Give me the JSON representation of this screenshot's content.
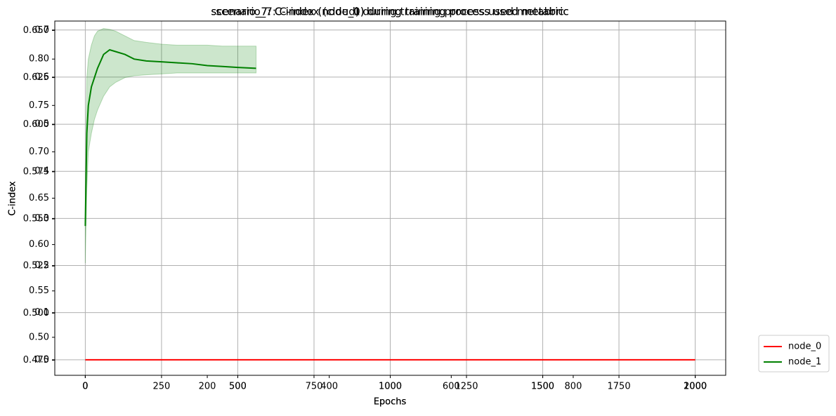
{
  "chart_data": [
    {
      "type": "line",
      "title": "scenario_7: C-index (node_0) during training process used metabric",
      "xlabel": "Epochs",
      "ylabel": "C-index",
      "xlim": [
        -100,
        2100
      ],
      "xticks": [
        0,
        250,
        500,
        750,
        1000,
        1250,
        1500,
        1750,
        2000
      ],
      "ylim": [
        -0.033,
        0.719
      ],
      "yticks": [
        {
          "value": 0,
          "label": "0.0"
        },
        0.1,
        0.2,
        0.3,
        0.4,
        0.5,
        0.6,
        0.7
      ],
      "grid": true,
      "series": [
        {
          "name": "node_0",
          "color": "#ff0000",
          "x": [
            0,
            2000
          ],
          "values": [
            0,
            0
          ]
        }
      ]
    },
    {
      "type": "line",
      "title": "scenario_7: C-index (node_1) during training process used metabric",
      "xlabel": "Epochs",
      "ylabel": "C-index",
      "xlim": [
        -100,
        2100
      ],
      "xticks": [
        0,
        500,
        1000,
        1500,
        2000
      ],
      "ylim": [
        0.459,
        0.841
      ],
      "yticks": [
        {
          "value": 0.5,
          "label": "0.50"
        },
        0.55,
        {
          "value": 0.6,
          "label": "0.60"
        },
        0.65,
        {
          "value": 0.7,
          "label": "0.70"
        },
        0.75,
        {
          "value": 0.8,
          "label": "0.80"
        }
      ],
      "grid": false,
      "series": [
        {
          "name": "node_1",
          "color": "#008000",
          "x": [
            0,
            5,
            10,
            20,
            30,
            40,
            60,
            80,
            100,
            130,
            160,
            200,
            250,
            300,
            350,
            400,
            450,
            500,
            560
          ],
          "values": [
            0.62,
            0.72,
            0.75,
            0.77,
            0.78,
            0.79,
            0.805,
            0.81,
            0.808,
            0.805,
            0.8,
            0.798,
            0.797,
            0.796,
            0.795,
            0.793,
            0.792,
            0.791,
            0.79
          ],
          "lower": [
            0.58,
            0.66,
            0.7,
            0.72,
            0.735,
            0.745,
            0.76,
            0.77,
            0.775,
            0.78,
            0.782,
            0.783,
            0.784,
            0.785,
            0.785,
            0.785,
            0.785,
            0.785,
            0.785
          ],
          "upper": [
            0.66,
            0.78,
            0.8,
            0.815,
            0.825,
            0.83,
            0.833,
            0.832,
            0.83,
            0.825,
            0.82,
            0.818,
            0.816,
            0.815,
            0.815,
            0.815,
            0.814,
            0.814,
            0.814
          ]
        }
      ]
    },
    {
      "type": "line",
      "title": "scenario_7: C-index (cloud) during training process used metabric",
      "xlabel": "Epochs",
      "ylabel": "C-index",
      "xlim": [
        -50,
        1050
      ],
      "xticks": [
        0,
        200,
        400,
        600,
        800,
        1000
      ],
      "ylim": [
        0.467,
        0.655
      ],
      "yticks": [
        0.475,
        {
          "value": 0.5,
          "label": "0.500"
        },
        0.525,
        {
          "value": 0.55,
          "label": "0.550"
        },
        0.575,
        {
          "value": 0.6,
          "label": "0.600"
        },
        0.625,
        {
          "value": 0.65,
          "label": "0.650"
        }
      ],
      "grid": false,
      "series": []
    }
  ]
}
